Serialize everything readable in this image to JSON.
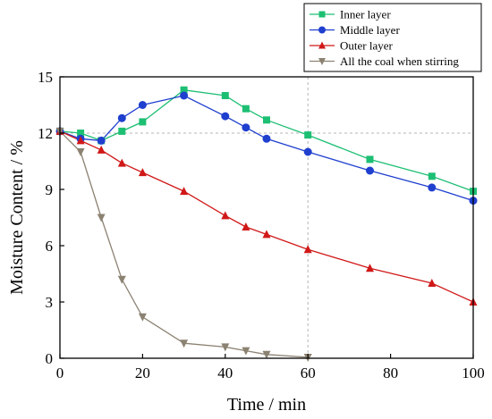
{
  "chart_data": {
    "type": "line",
    "xlabel": "Time / min",
    "ylabel": "Moisture Content / %",
    "xlim": [
      0,
      100
    ],
    "ylim": [
      0,
      15
    ],
    "xticks": [
      0,
      20,
      40,
      60,
      80,
      100
    ],
    "yticks": [
      0,
      3,
      6,
      9,
      12,
      15
    ],
    "grid": "dashed gridlines at x = 60 and y = 12",
    "legend_position": "top-right, outside plot",
    "series": [
      {
        "name": "Inner layer",
        "color": "#1dbf73",
        "marker": "square",
        "x": [
          0,
          5,
          10,
          15,
          20,
          30,
          40,
          45,
          50,
          60,
          75,
          90,
          100
        ],
        "y": [
          12.1,
          12.0,
          11.6,
          12.1,
          12.6,
          14.3,
          14.0,
          13.3,
          12.7,
          11.9,
          10.6,
          9.7,
          8.9
        ]
      },
      {
        "name": "Middle layer",
        "color": "#1f3fcf",
        "marker": "circle",
        "x": [
          0,
          5,
          10,
          15,
          20,
          30,
          40,
          45,
          50,
          60,
          75,
          90,
          100
        ],
        "y": [
          12.1,
          11.7,
          11.6,
          12.8,
          13.5,
          14.0,
          12.9,
          12.3,
          11.7,
          11.0,
          10.0,
          9.1,
          8.4
        ]
      },
      {
        "name": "Outer layer",
        "color": "#d01818",
        "marker": "triangle-up",
        "x": [
          0,
          5,
          10,
          15,
          20,
          30,
          40,
          45,
          50,
          60,
          75,
          90,
          100
        ],
        "y": [
          12.1,
          11.6,
          11.1,
          10.4,
          9.9,
          8.9,
          7.6,
          7.0,
          6.6,
          5.8,
          4.8,
          4.0,
          3.0
        ]
      },
      {
        "name": "All the coal when stirring",
        "color": "#8c8272",
        "marker": "triangle-down",
        "x": [
          0,
          5,
          10,
          15,
          20,
          30,
          40,
          45,
          50,
          60
        ],
        "y": [
          12.1,
          11.0,
          7.5,
          4.2,
          2.2,
          0.8,
          0.6,
          0.4,
          0.2,
          0.05
        ]
      }
    ]
  }
}
